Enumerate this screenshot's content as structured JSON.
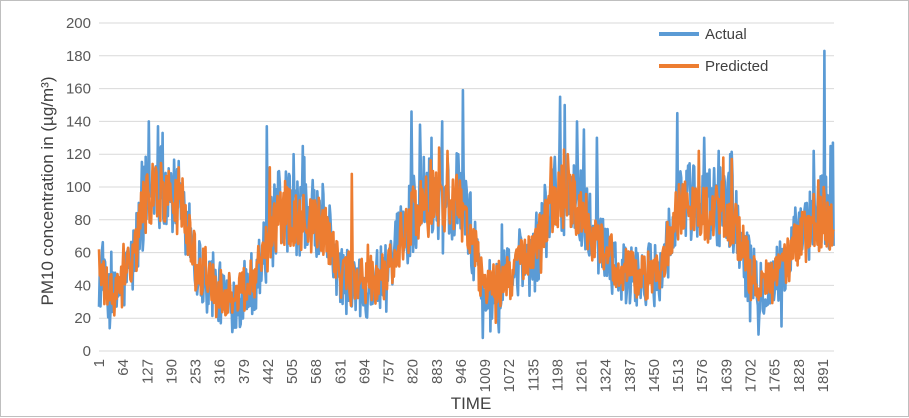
{
  "chart_data": {
    "type": "line",
    "title": "",
    "xlabel": "TIME",
    "ylabel": "PM10 concentration in (µg/m³)",
    "ylim": [
      0,
      200
    ],
    "yticks": [
      0,
      20,
      40,
      60,
      80,
      100,
      120,
      140,
      160,
      180,
      200
    ],
    "xlim": [
      1,
      1920
    ],
    "xticks": [
      1,
      64,
      127,
      190,
      253,
      316,
      379,
      442,
      505,
      568,
      631,
      694,
      757,
      820,
      883,
      946,
      1009,
      1072,
      1135,
      1198,
      1261,
      1324,
      1387,
      1450,
      1513,
      1576,
      1639,
      1702,
      1765,
      1828,
      1891
    ],
    "grid": true,
    "legend_position": "top-right",
    "series": [
      {
        "name": "Actual",
        "color": "#5b9bd5",
        "anchors": [
          [
            1,
            45
          ],
          [
            20,
            35
          ],
          [
            40,
            30
          ],
          [
            64,
            42
          ],
          [
            90,
            55
          ],
          [
            110,
            80
          ],
          [
            127,
            100
          ],
          [
            150,
            105
          ],
          [
            170,
            100
          ],
          [
            190,
            95
          ],
          [
            215,
            90
          ],
          [
            235,
            80
          ],
          [
            253,
            55
          ],
          [
            280,
            42
          ],
          [
            316,
            35
          ],
          [
            350,
            30
          ],
          [
            379,
            35
          ],
          [
            410,
            45
          ],
          [
            442,
            65
          ],
          [
            470,
            85
          ],
          [
            505,
            85
          ],
          [
            540,
            80
          ],
          [
            568,
            80
          ],
          [
            600,
            70
          ],
          [
            631,
            45
          ],
          [
            660,
            40
          ],
          [
            694,
            40
          ],
          [
            730,
            42
          ],
          [
            757,
            45
          ],
          [
            790,
            70
          ],
          [
            820,
            85
          ],
          [
            850,
            95
          ],
          [
            883,
            95
          ],
          [
            910,
            92
          ],
          [
            946,
            100
          ],
          [
            975,
            70
          ],
          [
            1009,
            35
          ],
          [
            1040,
            38
          ],
          [
            1072,
            45
          ],
          [
            1100,
            50
          ],
          [
            1135,
            55
          ],
          [
            1165,
            80
          ],
          [
            1198,
            100
          ],
          [
            1230,
            95
          ],
          [
            1261,
            85
          ],
          [
            1290,
            75
          ],
          [
            1324,
            65
          ],
          [
            1355,
            50
          ],
          [
            1387,
            45
          ],
          [
            1420,
            45
          ],
          [
            1450,
            45
          ],
          [
            1480,
            60
          ],
          [
            1513,
            90
          ],
          [
            1545,
            90
          ],
          [
            1576,
            85
          ],
          [
            1610,
            90
          ],
          [
            1639,
            90
          ],
          [
            1670,
            75
          ],
          [
            1702,
            45
          ],
          [
            1735,
            40
          ],
          [
            1765,
            42
          ],
          [
            1800,
            55
          ],
          [
            1828,
            70
          ],
          [
            1860,
            75
          ],
          [
            1891,
            85
          ],
          [
            1920,
            80
          ]
        ],
        "noise_amplitude": 25,
        "peaks": [
          [
            131,
            140
          ],
          [
            155,
            137
          ],
          [
            168,
            133
          ],
          [
            300,
            60
          ],
          [
            440,
            137
          ],
          [
            510,
            120
          ],
          [
            533,
            125
          ],
          [
            818,
            146
          ],
          [
            840,
            138
          ],
          [
            870,
            130
          ],
          [
            898,
            140
          ],
          [
            940,
            120
          ],
          [
            952,
            159
          ],
          [
            1003,
            8
          ],
          [
            1024,
            12
          ],
          [
            1206,
            155
          ],
          [
            1218,
            150
          ],
          [
            1250,
            140
          ],
          [
            1268,
            135
          ],
          [
            1302,
            130
          ],
          [
            1511,
            145
          ],
          [
            1581,
            130
          ],
          [
            1620,
            122
          ],
          [
            1650,
            120
          ],
          [
            1723,
            10
          ],
          [
            1784,
            15
          ],
          [
            1868,
            122
          ],
          [
            1896,
            183
          ],
          [
            1912,
            125
          ],
          [
            1918,
            127
          ]
        ]
      },
      {
        "name": "Predicted",
        "color": "#ed7d31",
        "anchors": [
          [
            1,
            45
          ],
          [
            20,
            38
          ],
          [
            40,
            32
          ],
          [
            64,
            42
          ],
          [
            90,
            55
          ],
          [
            110,
            78
          ],
          [
            127,
            95
          ],
          [
            150,
            98
          ],
          [
            170,
            95
          ],
          [
            190,
            92
          ],
          [
            215,
            85
          ],
          [
            235,
            75
          ],
          [
            253,
            55
          ],
          [
            280,
            45
          ],
          [
            316,
            38
          ],
          [
            350,
            33
          ],
          [
            379,
            38
          ],
          [
            410,
            48
          ],
          [
            442,
            65
          ],
          [
            470,
            80
          ],
          [
            505,
            82
          ],
          [
            540,
            78
          ],
          [
            568,
            78
          ],
          [
            600,
            68
          ],
          [
            631,
            48
          ],
          [
            660,
            42
          ],
          [
            694,
            42
          ],
          [
            730,
            44
          ],
          [
            757,
            48
          ],
          [
            790,
            68
          ],
          [
            820,
            82
          ],
          [
            850,
            90
          ],
          [
            883,
            92
          ],
          [
            910,
            90
          ],
          [
            946,
            95
          ],
          [
            975,
            68
          ],
          [
            1009,
            38
          ],
          [
            1040,
            40
          ],
          [
            1072,
            46
          ],
          [
            1100,
            52
          ],
          [
            1135,
            56
          ],
          [
            1165,
            78
          ],
          [
            1198,
            95
          ],
          [
            1230,
            92
          ],
          [
            1261,
            82
          ],
          [
            1290,
            72
          ],
          [
            1324,
            62
          ],
          [
            1355,
            50
          ],
          [
            1387,
            46
          ],
          [
            1420,
            46
          ],
          [
            1450,
            46
          ],
          [
            1480,
            60
          ],
          [
            1513,
            85
          ],
          [
            1545,
            86
          ],
          [
            1576,
            82
          ],
          [
            1610,
            86
          ],
          [
            1639,
            86
          ],
          [
            1670,
            72
          ],
          [
            1702,
            46
          ],
          [
            1735,
            42
          ],
          [
            1765,
            44
          ],
          [
            1800,
            55
          ],
          [
            1828,
            70
          ],
          [
            1860,
            72
          ],
          [
            1891,
            80
          ],
          [
            1920,
            78
          ]
        ],
        "noise_amplitude": 18,
        "peaks": [
          [
            1,
            62
          ],
          [
            150,
            112
          ],
          [
            210,
            112
          ],
          [
            447,
            112
          ],
          [
            661,
            108
          ],
          [
            890,
            124
          ],
          [
            912,
            122
          ],
          [
            1182,
            118
          ],
          [
            1225,
            120
          ],
          [
            1567,
            122
          ],
          [
            1631,
            118
          ],
          [
            1654,
            117
          ],
          [
            1879,
            104
          ],
          [
            1893,
            100
          ]
        ]
      }
    ]
  }
}
